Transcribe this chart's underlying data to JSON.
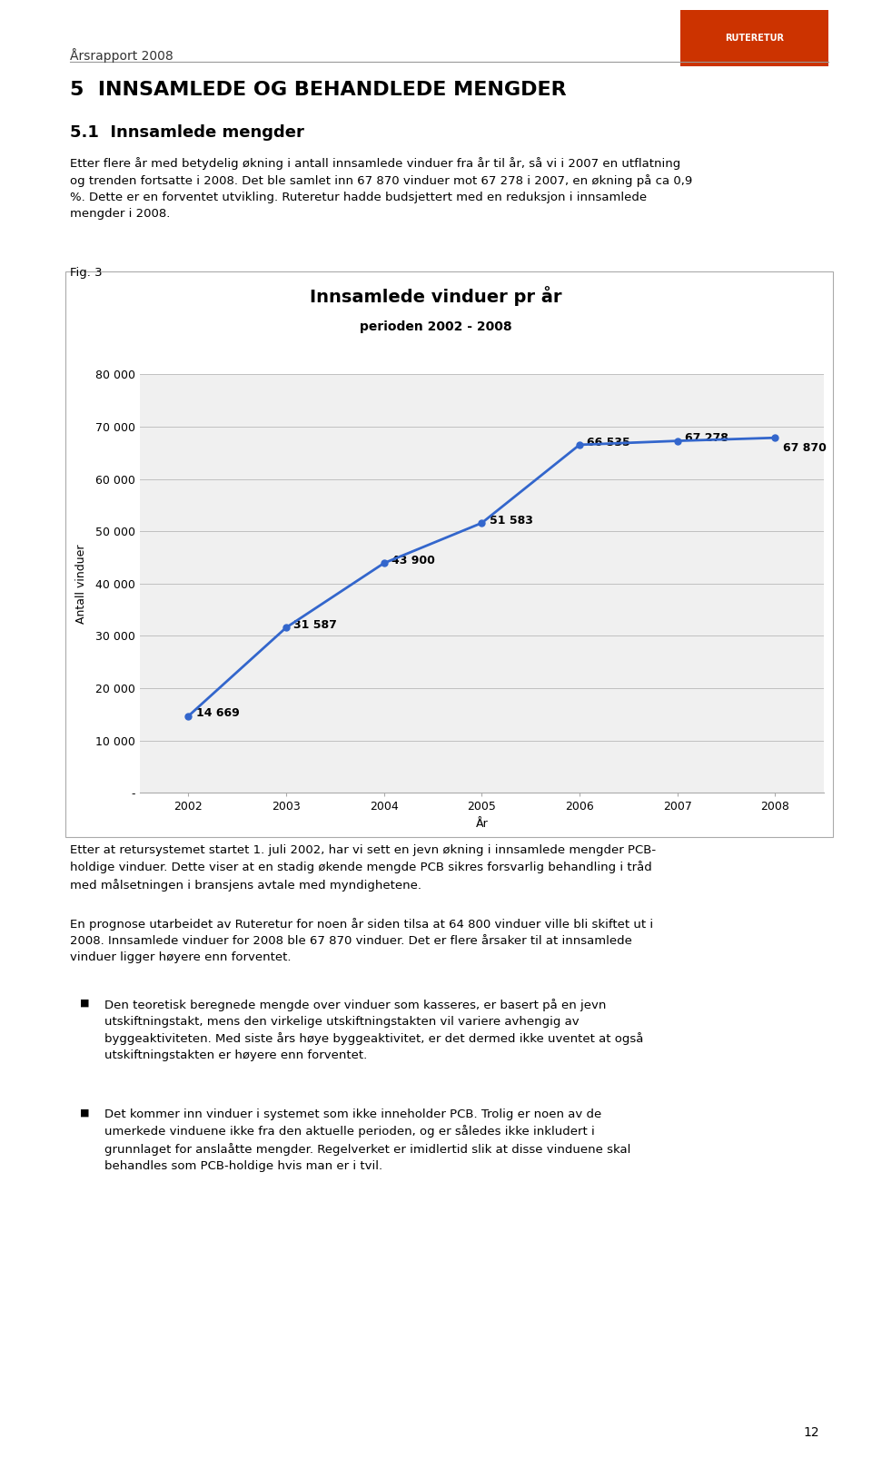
{
  "chart_title": "Innsamlede vinduer pr år",
  "chart_subtitle": "perioden 2002 - 2008",
  "years": [
    2002,
    2003,
    2004,
    2005,
    2006,
    2007,
    2008
  ],
  "values": [
    14669,
    31587,
    43900,
    51583,
    66535,
    67278,
    67870
  ],
  "labels": [
    "14 669",
    "31 587",
    "43 900",
    "51 583",
    "66 535",
    "67 278",
    "67 870"
  ],
  "xlabel": "År",
  "ylabel": "Antall vinduer",
  "ylim_min": 0,
  "ylim_max": 80000,
  "yticks": [
    0,
    10000,
    20000,
    30000,
    40000,
    50000,
    60000,
    70000,
    80000
  ],
  "ytick_labels": [
    "-",
    "10 000",
    "20 000",
    "30 000",
    "40 000",
    "50 000",
    "60 000",
    "70 000",
    "80 000"
  ],
  "line_color": "#3366CC",
  "marker_color": "#3366CC",
  "chart_title_fontsize": 14,
  "chart_subtitle_fontsize": 10,
  "axis_label_fontsize": 9,
  "tick_fontsize": 9,
  "annotation_fontsize": 9,
  "background_color": "#ffffff",
  "grid_color": "#c0c0c0",
  "chart_bg_color": "#f0f0f0",
  "header_text": "Årsrapport 2008",
  "section_heading": "5  INNSAMLEDE OG BEHANDLEDE MENGDER",
  "subsection_heading": "5.1  Innsamlede mengder",
  "body_text_1": "Etter flere år med betydelig økning i antall innsamlede vinduer fra år til år, så vi i 2007 en utflatning\nog trenden fortsatte i 2008. Det ble samlet inn 67 870 vinduer mot 67 278 i 2007, en økning på ca 0,9\n%. Dette er en forventet utvikling. Ruteretur hadde budsjettert med en reduksjon i innsamlede\nmengder i 2008.",
  "fig_label": "Fig. 3",
  "body_text_2": "Etter at retursystemet startet 1. juli 2002, har vi sett en jevn økning i innsamlede mengder PCB-\nholdige vinduer. Dette viser at en stadig økende mengde PCB sikres forsvarlig behandling i tråd\nmed målsetningen i bransjens avtale med myndighetene.",
  "body_text_3": "En prognose utarbeidet av Ruteretur for noen år siden tilsa at 64 800 vinduer ville bli skiftet ut i\n2008. Innsamlede vinduer for 2008 ble 67 870 vinduer. Det er flere årsaker til at innsamlede\nvinduer ligger høyere enn forventet.",
  "bullet_1": "Den teoretisk beregnede mengde over vinduer som kasseres, er basert på en jevn\nutskiftningstakt, mens den virkelige utskiftningstakten vil variere avhengig av\nbyggeaktiviteten. Med siste års høye byggeaktivitet, er det dermed ikke uventet at også\nutskiftningstakten er høyere enn forventet.",
  "bullet_2": "Det kommer inn vinduer i systemet som ikke inneholder PCB. Trolig er noen av de\numerkede vinduene ikke fra den aktuelle perioden, og er således ikke inkludert i\ngrunnlaget for anslaåtte mengder. Regelverket er imidlertid slik at disse vinduene skal\nbehandles som PCB-holdige hvis man er i tvil.",
  "page_number": "12"
}
